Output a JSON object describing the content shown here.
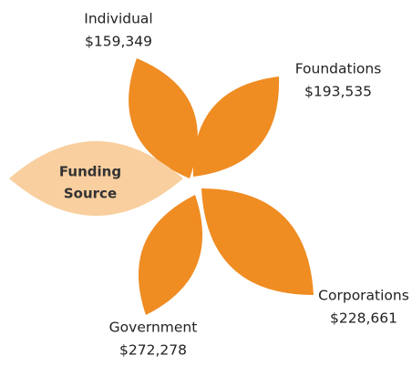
{
  "center": {
    "lines": [
      "Funding",
      "Source"
    ]
  },
  "nodes": [
    {
      "label": "Individual",
      "value": "$159,349"
    },
    {
      "label": "Foundations",
      "value": "$193,535"
    },
    {
      "label": "Corporations",
      "value": "$228,661"
    },
    {
      "label": "Government",
      "value": "$272,278"
    }
  ]
}
